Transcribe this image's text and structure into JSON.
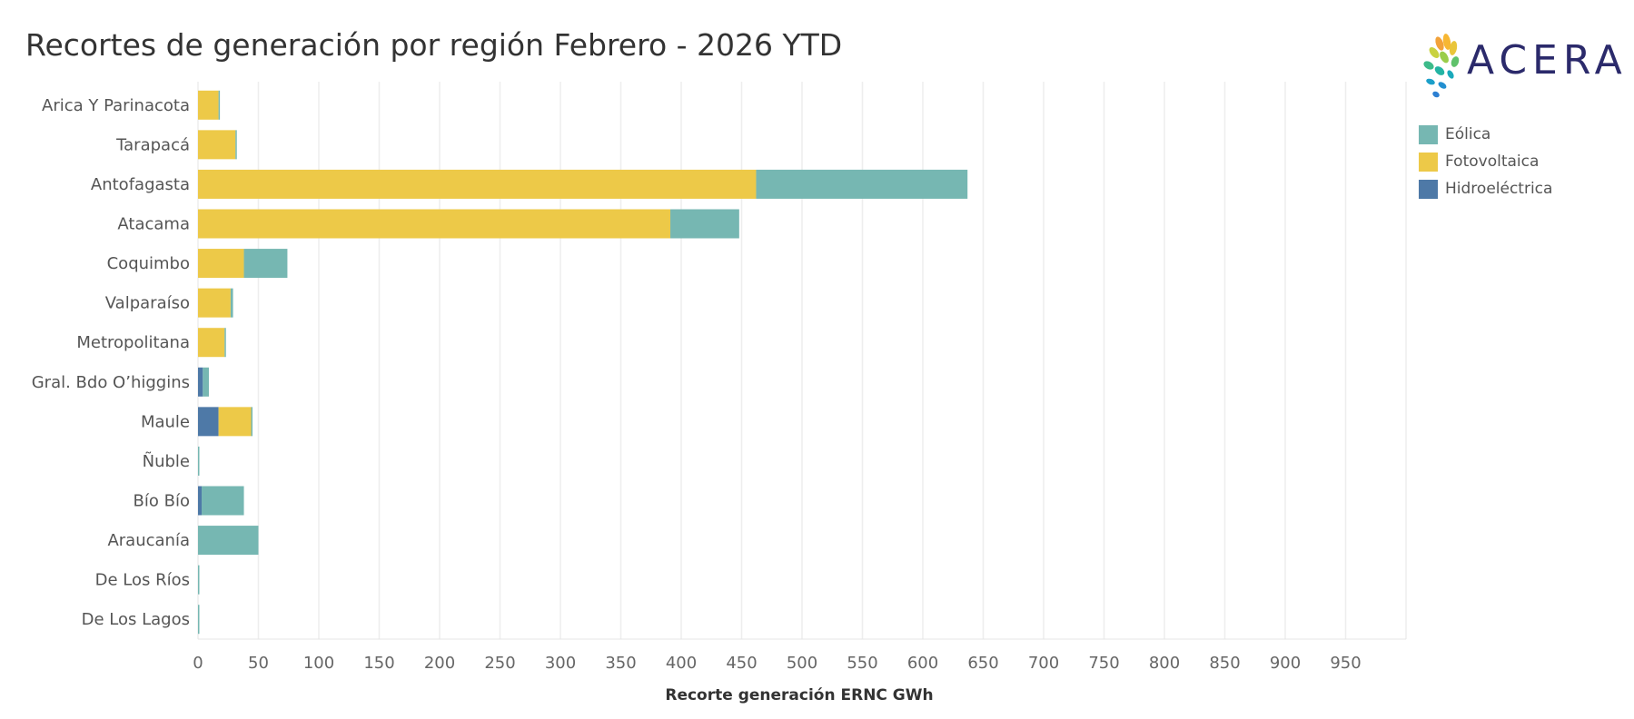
{
  "page": {
    "title": "Recortes de generación por región Febrero - 2026 YTD"
  },
  "logo": {
    "text": "ACERA"
  },
  "colors": {
    "eolica": "#76b7b2",
    "fotovoltaica": "#edc948",
    "hidroelectrica": "#4e79a7"
  },
  "chart_data": {
    "type": "bar",
    "orientation": "horizontal",
    "stacked": true,
    "categories": [
      "Arica Y Parinacota",
      "Tarapacá",
      "Antofagasta",
      "Atacama",
      "Coquimbo",
      "Valparaíso",
      "Metropolitana",
      "Gral. Bdo O’higgins",
      "Maule",
      "Ñuble",
      "Bío Bío",
      "Araucanía",
      "De Los Ríos",
      "De Los Lagos"
    ],
    "series": [
      {
        "name": "Hidroeléctrica",
        "color": "#4e79a7",
        "values": [
          0,
          0,
          0,
          0,
          0,
          0,
          0,
          4,
          17,
          0,
          3,
          0,
          0,
          0
        ]
      },
      {
        "name": "Fotovoltaica",
        "color": "#edc948",
        "values": [
          17,
          31,
          462,
          391,
          38,
          27,
          22,
          0,
          27,
          0,
          0,
          0,
          0,
          0
        ]
      },
      {
        "name": "Eólica",
        "color": "#76b7b2",
        "values": [
          1,
          1,
          175,
          57,
          36,
          2,
          1,
          5,
          1,
          1,
          35,
          50,
          1,
          1
        ]
      }
    ],
    "legend_order": [
      "Eólica",
      "Fotovoltaica",
      "Hidroeléctrica"
    ],
    "xlabel": "Recorte generación ERNC GWh",
    "ylabel": "",
    "xticks": [
      0,
      50,
      100,
      150,
      200,
      250,
      300,
      350,
      400,
      450,
      500,
      550,
      600,
      650,
      700,
      750,
      800,
      850,
      900,
      950
    ],
    "xlim": [
      0,
      1000
    ],
    "grid": true,
    "legend_position": "top-right"
  }
}
